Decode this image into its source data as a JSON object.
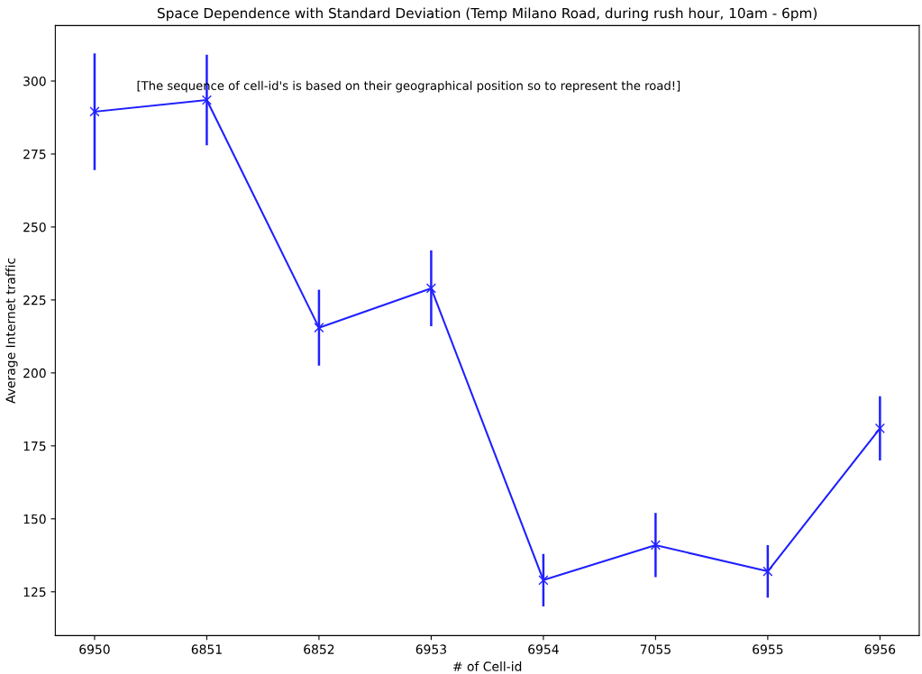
{
  "chart_data": {
    "type": "line",
    "title": "Space Dependence with Standard Deviation (Temp Milano Road, during rush hour, 10am - 6pm)",
    "xlabel": "# of Cell-id",
    "ylabel": "Average Internet traffic",
    "categories": [
      "6950",
      "6851",
      "6852",
      "6953",
      "6954",
      "7055",
      "6955",
      "6956"
    ],
    "series": [
      {
        "color": "#2020ff",
        "values": [
          289.5,
          293.5,
          215.5,
          229,
          129,
          141,
          132,
          181
        ],
        "errors": [
          20,
          15.5,
          13,
          13,
          9,
          11,
          9,
          11
        ]
      }
    ],
    "ylim": [
      110,
      319
    ],
    "yticks": [
      125,
      150,
      175,
      200,
      225,
      250,
      275,
      300
    ],
    "marker": "cross",
    "line_style": "solid",
    "grid": false,
    "legend": false,
    "annotations": [
      "[The sequence of cell-id's is based on their geographical position so to represent the road!]"
    ]
  }
}
